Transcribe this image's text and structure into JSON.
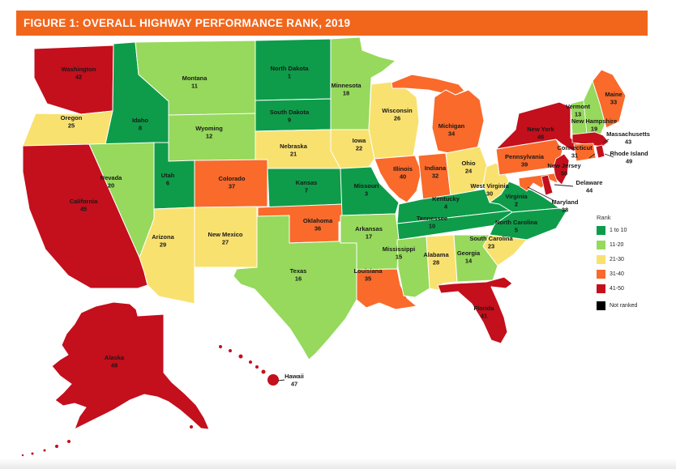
{
  "figure": {
    "title": "FIGURE 1: OVERALL HIGHWAY PERFORMANCE RANK, 2019",
    "bar_color": "#F2661C"
  },
  "legend": {
    "title": "Rank",
    "items": [
      {
        "label": "1 to 10",
        "color": "#0E9C4A"
      },
      {
        "label": "11-20",
        "color": "#96D95C"
      },
      {
        "label": "21-30",
        "color": "#F9E170"
      },
      {
        "label": "31-40",
        "color": "#F96A2B"
      },
      {
        "label": "41-50",
        "color": "#C40F1C"
      },
      {
        "label": "Not ranked",
        "color": "#000000"
      }
    ]
  },
  "states": [
    {
      "id": "WA",
      "name": "Washington",
      "rank": 42
    },
    {
      "id": "OR",
      "name": "Oregon",
      "rank": 25
    },
    {
      "id": "CA",
      "name": "California",
      "rank": 45
    },
    {
      "id": "NV",
      "name": "Nevada",
      "rank": 20
    },
    {
      "id": "ID",
      "name": "Idaho",
      "rank": 8
    },
    {
      "id": "UT",
      "name": "Utah",
      "rank": 6
    },
    {
      "id": "AZ",
      "name": "Arizona",
      "rank": 29
    },
    {
      "id": "MT",
      "name": "Montana",
      "rank": 11
    },
    {
      "id": "WY",
      "name": "Wyoming",
      "rank": 12
    },
    {
      "id": "CO",
      "name": "Colorado",
      "rank": 37
    },
    {
      "id": "NM",
      "name": "New Mexico",
      "rank": 27
    },
    {
      "id": "ND",
      "name": "North Dakota",
      "rank": 1
    },
    {
      "id": "SD",
      "name": "South Dakota",
      "rank": 9
    },
    {
      "id": "NE",
      "name": "Nebraska",
      "rank": 21
    },
    {
      "id": "KS",
      "name": "Kansas",
      "rank": 7
    },
    {
      "id": "OK",
      "name": "Oklahoma",
      "rank": 36
    },
    {
      "id": "TX",
      "name": "Texas",
      "rank": 16
    },
    {
      "id": "MN",
      "name": "Minnesota",
      "rank": 18
    },
    {
      "id": "IA",
      "name": "Iowa",
      "rank": 22
    },
    {
      "id": "MO",
      "name": "Missouri",
      "rank": 3
    },
    {
      "id": "AR",
      "name": "Arkansas",
      "rank": 17
    },
    {
      "id": "LA",
      "name": "Louisiana",
      "rank": 35
    },
    {
      "id": "WI",
      "name": "Wisconsin",
      "rank": 26
    },
    {
      "id": "IL",
      "name": "Illinois",
      "rank": 40
    },
    {
      "id": "MI",
      "name": "Michigan",
      "rank": 34
    },
    {
      "id": "IN",
      "name": "Indiana",
      "rank": 32
    },
    {
      "id": "OH",
      "name": "Ohio",
      "rank": 24
    },
    {
      "id": "KY",
      "name": "Kentucky",
      "rank": 4
    },
    {
      "id": "TN",
      "name": "Tennessee",
      "rank": 10
    },
    {
      "id": "MS",
      "name": "Mississippi",
      "rank": 15
    },
    {
      "id": "AL",
      "name": "Alabama",
      "rank": 28
    },
    {
      "id": "GA",
      "name": "Georgia",
      "rank": 14
    },
    {
      "id": "FL",
      "name": "Florida",
      "rank": 41
    },
    {
      "id": "WV",
      "name": "West Virginia",
      "rank": 30
    },
    {
      "id": "VA",
      "name": "Virginia",
      "rank": 2
    },
    {
      "id": "NC",
      "name": "North Carolina",
      "rank": 5
    },
    {
      "id": "SC",
      "name": "South Carolina",
      "rank": 23
    },
    {
      "id": "PA",
      "name": "Pennsylvania",
      "rank": 39
    },
    {
      "id": "NY",
      "name": "New York",
      "rank": 46
    },
    {
      "id": "NJ",
      "name": "New Jersey",
      "rank": 50
    },
    {
      "id": "DE",
      "name": "Delaware",
      "rank": 44
    },
    {
      "id": "MD",
      "name": "Maryland",
      "rank": 38
    },
    {
      "id": "VT",
      "name": "Vermont",
      "rank": 13
    },
    {
      "id": "NH",
      "name": "New Hampshire",
      "rank": 19
    },
    {
      "id": "ME",
      "name": "Maine",
      "rank": 33
    },
    {
      "id": "MA",
      "name": "Massachusetts",
      "rank": 43
    },
    {
      "id": "CT",
      "name": "Connecticut",
      "rank": 31
    },
    {
      "id": "RI",
      "name": "Rhode Island",
      "rank": 49
    },
    {
      "id": "AK",
      "name": "Alaska",
      "rank": 48
    },
    {
      "id": "HI",
      "name": "Hawaii",
      "rank": 47
    }
  ]
}
